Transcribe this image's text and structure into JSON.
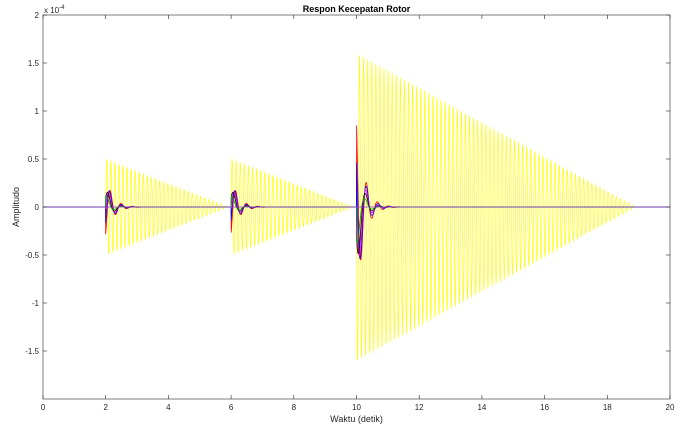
{
  "chart_data": {
    "type": "line",
    "title": "Respon Kecepatan Rotor",
    "xlabel": "Waktu (detik)",
    "ylabel": "Amplitudo",
    "exponent_label": "x 10",
    "exponent_power": "-4",
    "xlim": [
      0,
      20
    ],
    "ylim": [
      -2,
      2
    ],
    "scale_factor": 0.0001,
    "xticks": [
      "0",
      "2",
      "4",
      "6",
      "8",
      "10",
      "12",
      "14",
      "16",
      "18",
      "20"
    ],
    "yticks": [
      "-1.5",
      "-1",
      "-0.5",
      "0",
      "0.5",
      "1",
      "1.5",
      "2"
    ],
    "grid": false,
    "box": true,
    "disturbances": [
      {
        "t": 2.0,
        "direction": -1,
        "initial_peak": 0.5,
        "oscillation_end": 5.9
      },
      {
        "t": 6.0,
        "direction": -1,
        "initial_peak": 0.5,
        "oscillation_end": 9.9
      },
      {
        "t": 10.0,
        "direction": 1,
        "initial_peak": 1.6,
        "oscillation_end": 18.9
      }
    ],
    "series": [
      {
        "color": "#ffff00",
        "response": "sustained oscillation decaying linearly to zero",
        "period": 0.13
      },
      {
        "color": "#ff0000",
        "response": "damped transient",
        "peak_ratio": 0.8
      },
      {
        "color": "#0000ff",
        "response": "damped transient",
        "peak_ratio": 0.75
      },
      {
        "color": "#ff00ff",
        "response": "damped transient",
        "peak_ratio": 0.65
      },
      {
        "color": "#000000",
        "response": "damped transient",
        "peak_ratio": 0.55
      },
      {
        "color": "#00a000",
        "response": "damped transient",
        "peak_ratio": 0.35
      },
      {
        "color": "#8a2be2",
        "response": "flat baseline",
        "peak_ratio": 0
      }
    ]
  }
}
